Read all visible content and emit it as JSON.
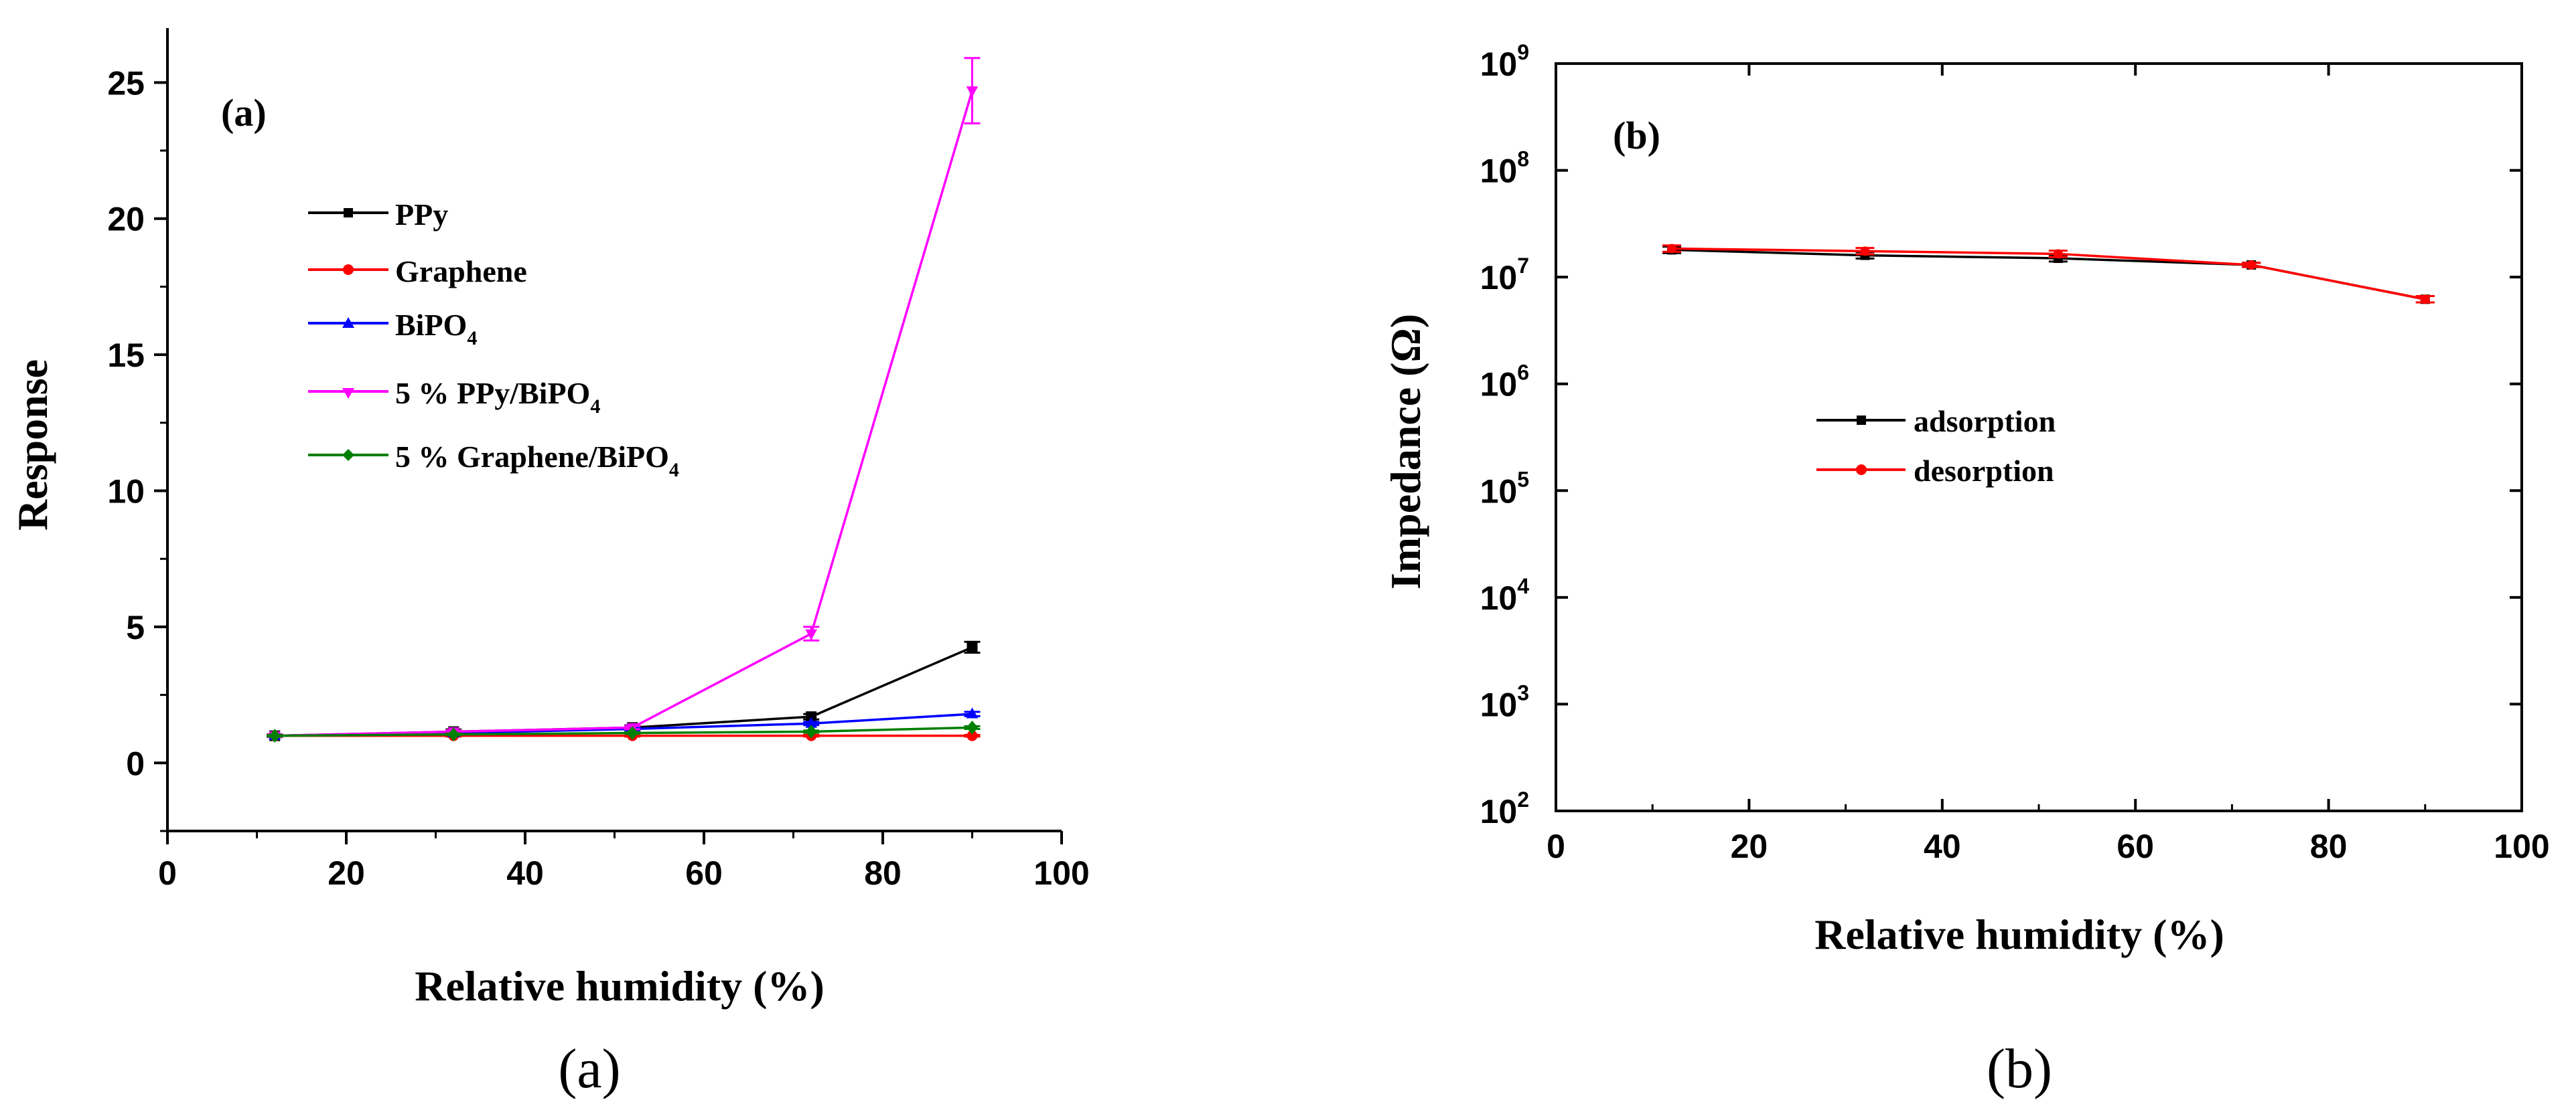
{
  "chart_data": [
    {
      "type": "line",
      "panel_label": "(a)",
      "caption": "(a)",
      "xlabel": "Relative humidity (%)",
      "ylabel": "Response",
      "xlim": [
        0,
        100
      ],
      "ylim": [
        -2.5,
        27
      ],
      "xticks": [
        0,
        20,
        40,
        60,
        80,
        100
      ],
      "yticks": [
        0,
        5,
        10,
        15,
        20,
        25
      ],
      "grid": false,
      "legend_position": "upper-left",
      "x": [
        12,
        32,
        52,
        72,
        90
      ],
      "series": [
        {
          "name": "PPy",
          "name_main": "PPy",
          "name_sub": "",
          "name_tail": "",
          "color": "#000000",
          "marker": "square",
          "values": [
            1.0,
            1.15,
            1.3,
            1.7,
            4.25
          ],
          "errors": [
            0.05,
            0.08,
            0.08,
            0.1,
            0.2
          ]
        },
        {
          "name": "Graphene",
          "name_main": "Graphene",
          "name_sub": "",
          "name_tail": "",
          "color": "#ff0000",
          "marker": "circle",
          "values": [
            1.0,
            1.0,
            1.0,
            1.0,
            1.0
          ],
          "errors": [
            0.03,
            0.03,
            0.03,
            0.03,
            0.03
          ]
        },
        {
          "name": "BiPO4",
          "name_main": "BiPO",
          "name_sub": "4",
          "name_tail": "",
          "color": "#0000ff",
          "marker": "triangle-up",
          "values": [
            1.0,
            1.1,
            1.25,
            1.45,
            1.8
          ],
          "errors": [
            0.04,
            0.05,
            0.05,
            0.06,
            0.08
          ]
        },
        {
          "name": "5 % PPy/BiPO4",
          "name_main": "5 % PPy/BiPO",
          "name_sub": "4",
          "name_tail": "",
          "color": "#ff00ff",
          "marker": "triangle-down",
          "values": [
            1.0,
            1.15,
            1.3,
            4.75,
            24.7
          ],
          "errors": [
            0.05,
            0.05,
            0.06,
            0.25,
            1.2
          ]
        },
        {
          "name": "5 % Graphene/BiPO4",
          "name_main": "5 % Graphene/BiPO",
          "name_sub": "4",
          "name_tail": "",
          "color": "#008000",
          "marker": "diamond",
          "values": [
            1.0,
            1.05,
            1.1,
            1.15,
            1.3
          ],
          "errors": [
            0.03,
            0.03,
            0.03,
            0.04,
            0.05
          ]
        }
      ]
    },
    {
      "type": "line",
      "panel_label": "(b)",
      "caption": "(b)",
      "xlabel": "Relative humidity (%)",
      "ylabel": "Impedance  (Ω)",
      "y_scale": "log",
      "xlim": [
        0,
        100
      ],
      "ylim": [
        100,
        1000000000
      ],
      "xticks": [
        0,
        20,
        40,
        60,
        80,
        100
      ],
      "ytick_exponents": [
        2,
        3,
        4,
        5,
        6,
        7,
        8,
        9
      ],
      "ytick_labels": [
        {
          "base": "10",
          "exp": "2"
        },
        {
          "base": "10",
          "exp": "3"
        },
        {
          "base": "10",
          "exp": "4"
        },
        {
          "base": "10",
          "exp": "5"
        },
        {
          "base": "10",
          "exp": "6"
        },
        {
          "base": "10",
          "exp": "7"
        },
        {
          "base": "10",
          "exp": "8"
        },
        {
          "base": "10",
          "exp": "9"
        }
      ],
      "grid": false,
      "legend_position": "center-left",
      "x": [
        12,
        32,
        52,
        72,
        90
      ],
      "series": [
        {
          "name": "adsorption",
          "color": "#000000",
          "marker": "square",
          "values": [
            18000000,
            16000000,
            15000000,
            13000000,
            6200000
          ],
          "errors_log": [
            0.03,
            0.03,
            0.03,
            0.02,
            0.03
          ]
        },
        {
          "name": "desorption",
          "color": "#ff0000",
          "marker": "circle",
          "values": [
            18500000,
            17500000,
            16500000,
            13000000,
            6200000
          ],
          "errors_log": [
            0.03,
            0.03,
            0.03,
            0.02,
            0.03
          ]
        }
      ]
    }
  ]
}
